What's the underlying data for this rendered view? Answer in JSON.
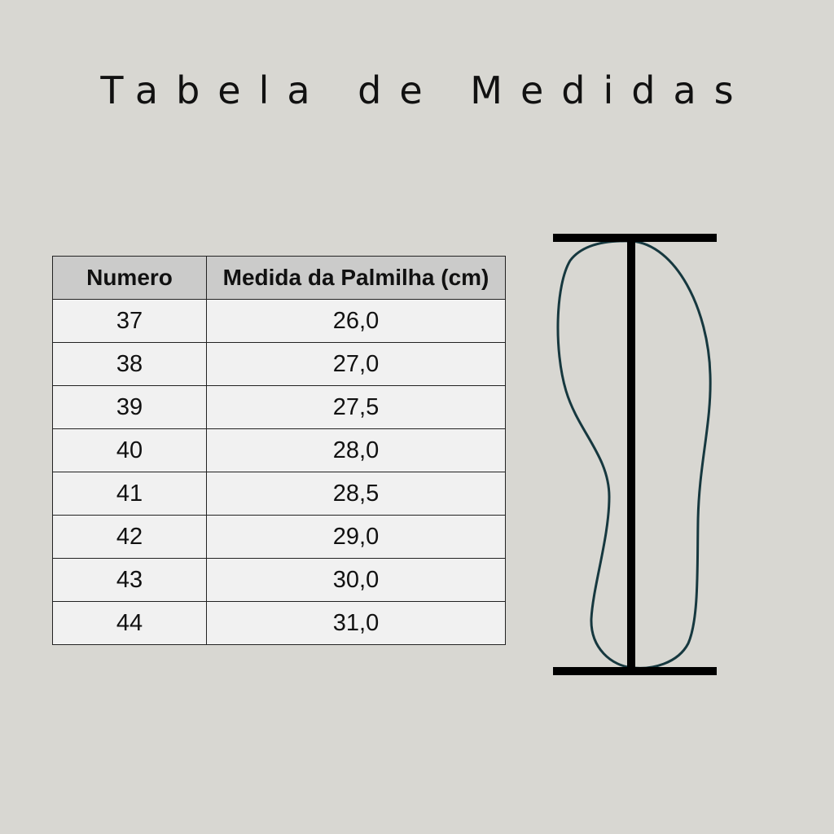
{
  "title": "Tabela de Medidas",
  "table": {
    "headers": [
      "Numero",
      "Medida da Palmilha (cm)"
    ],
    "rows": [
      [
        "37",
        "26,0"
      ],
      [
        "38",
        "27,0"
      ],
      [
        "39",
        "27,5"
      ],
      [
        "40",
        "28,0"
      ],
      [
        "41",
        "28,5"
      ],
      [
        "42",
        "29,0"
      ],
      [
        "43",
        "30,0"
      ],
      [
        "44",
        "31,0"
      ]
    ]
  },
  "colors": {
    "background": "#d8d7d2",
    "header": "#cbcbca",
    "sole_outline": "#16383f"
  }
}
